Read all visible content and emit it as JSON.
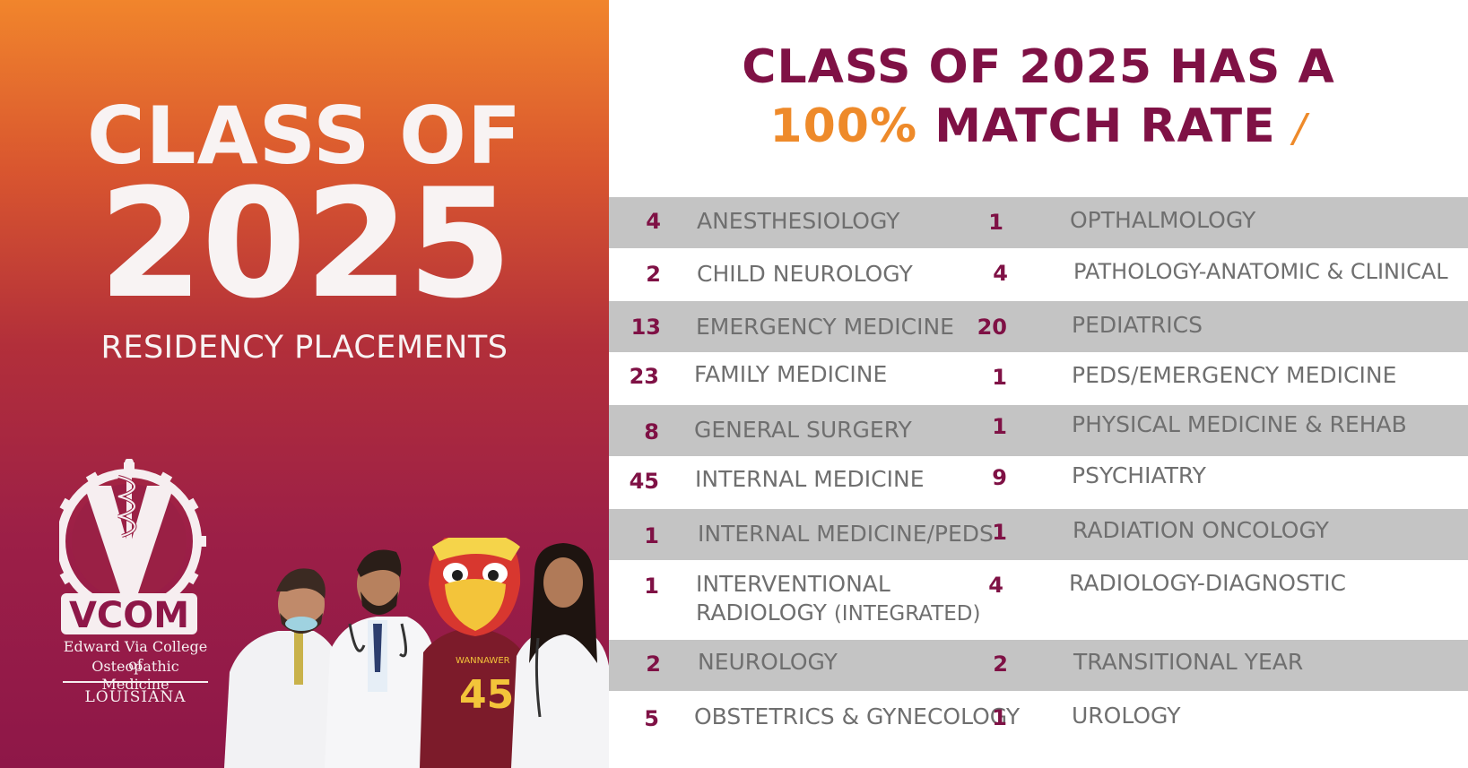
{
  "left_panel": {
    "heading_line1": "CLASS OF",
    "heading_year": "2025",
    "subheading": "RESIDENCY PLACEMENTS",
    "logo": {
      "icon": "vcom-caduceus-gear-logo-icon",
      "wordmark": "VCOM",
      "name_line1": "Edward Via College of",
      "name_line2": "Osteopathic Medicine",
      "state": "LOUISIANA"
    },
    "photo": {
      "mascot_jersey_text": "WANNAWER",
      "mascot_jersey_number": "45"
    }
  },
  "headline": {
    "line1": "CLASS OF 2025 HAS A",
    "line2_accent": "100%",
    "line2_rest": "MATCH RATE",
    "mark": "/"
  },
  "colors": {
    "maroon": "#7f1145",
    "orange": "#ee8a2a",
    "band_gray": "#c4c4c4",
    "label_gray": "#6f6f6f"
  },
  "placements_left": [
    {
      "count": "4",
      "specialty": "ANESTHESIOLOGY"
    },
    {
      "count": "2",
      "specialty": "CHILD NEUROLOGY"
    },
    {
      "count": "13",
      "specialty": "EMERGENCY MEDICINE"
    },
    {
      "count": "23",
      "specialty": "FAMILY MEDICINE"
    },
    {
      "count": "8",
      "specialty": "GENERAL SURGERY"
    },
    {
      "count": "45",
      "specialty": "INTERNAL MEDICINE"
    },
    {
      "count": "1",
      "specialty": "INTERNAL MEDICINE/PEDS"
    },
    {
      "count": "1",
      "specialty": "INTERVENTIONAL",
      "specialty_line2": "RADIOLOGY",
      "specialty_line2_note": "(INTEGRATED)"
    },
    {
      "count": "2",
      "specialty": "NEUROLOGY"
    },
    {
      "count": "5",
      "specialty": "OBSTETRICS & GYNECOLOGY"
    }
  ],
  "placements_right": [
    {
      "count": "1",
      "specialty": "OPTHALMOLOGY"
    },
    {
      "count": "4",
      "specialty": "PATHOLOGY-ANATOMIC & CLINICAL"
    },
    {
      "count": "20",
      "specialty": "PEDIATRICS"
    },
    {
      "count": "1",
      "specialty": "PEDS/EMERGENCY MEDICINE"
    },
    {
      "count": "1",
      "specialty": "PHYSICAL MEDICINE & REHAB"
    },
    {
      "count": "9",
      "specialty": "PSYCHIATRY"
    },
    {
      "count": "1",
      "specialty": "RADIATION ONCOLOGY"
    },
    {
      "count": "4",
      "specialty": "RADIOLOGY-DIAGNOSTIC"
    },
    {
      "count": "2",
      "specialty": "TRANSITIONAL YEAR"
    },
    {
      "count": "1",
      "specialty": "UROLOGY"
    }
  ]
}
